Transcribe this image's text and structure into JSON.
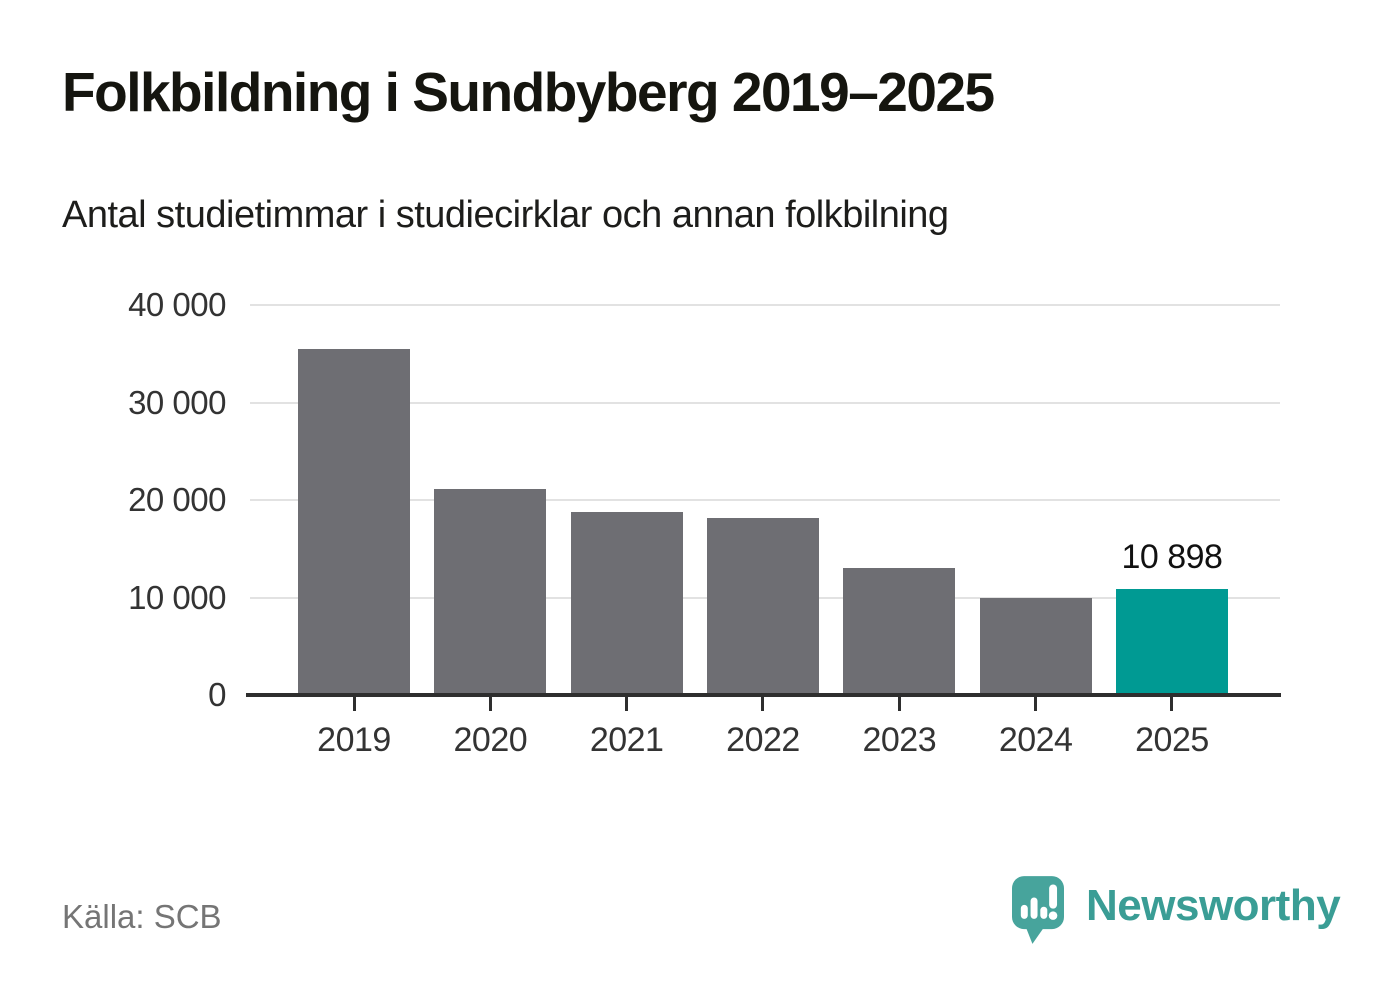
{
  "chart_data": {
    "type": "bar",
    "title": "Folkbildning i Sundbyberg 2019–2025",
    "subtitle": "Antal studietimmar i studiecirklar och annan folkbilning",
    "categories": [
      "2019",
      "2020",
      "2021",
      "2022",
      "2023",
      "2024",
      "2025"
    ],
    "values": [
      35500,
      21100,
      18800,
      18200,
      13000,
      10000,
      10898
    ],
    "xlabel": "",
    "ylabel": "",
    "ylim": [
      0,
      40000
    ],
    "yticks": [
      {
        "value": 0,
        "label": "0"
      },
      {
        "value": 10000,
        "label": "10 000"
      },
      {
        "value": 20000,
        "label": "20 000"
      },
      {
        "value": 30000,
        "label": "30 000"
      },
      {
        "value": 40000,
        "label": "40 000"
      }
    ],
    "grid": true,
    "legend": "none",
    "bar_color": "#6e6e73",
    "highlight": {
      "index": 6,
      "category": "2025",
      "value": 10898,
      "label": "10 898",
      "color": "#009a93"
    }
  },
  "footer": {
    "source": "Källa: SCB",
    "brand": "Newsworthy",
    "brand_color": "#3a9d95",
    "brand_icon_color": "#47a49c"
  }
}
